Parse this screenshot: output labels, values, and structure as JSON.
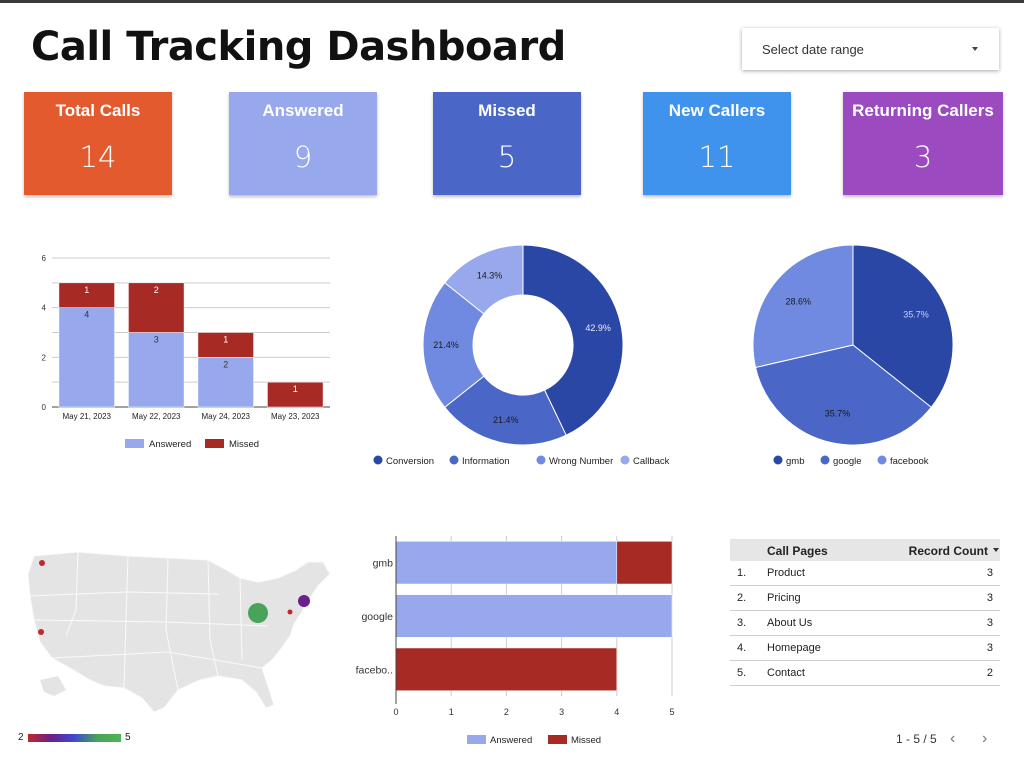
{
  "title": "Call Tracking Dashboard",
  "date_range": {
    "placeholder": "Select date range"
  },
  "kpis": [
    {
      "label": "Total Calls",
      "value": "14",
      "color": "#e45a2f"
    },
    {
      "label": "Answered",
      "value": "9",
      "color": "#97a9ec"
    },
    {
      "label": "Missed",
      "value": "5",
      "color": "#4a67c8"
    },
    {
      "label": "New Callers",
      "value": "11",
      "color": "#3f93ec"
    },
    {
      "label": "Returning Callers",
      "value": "3",
      "color": "#9b4bbf"
    }
  ],
  "colors": {
    "answered": "#97a9ec",
    "missed": "#a72a25",
    "dark_blue": "#2a47a6",
    "mid_blue": "#4a67c8",
    "light_blue": "#6f8ae0",
    "pale_blue": "#97a9ec"
  },
  "chart_data": [
    {
      "type": "bar",
      "stacked": true,
      "categories": [
        "May 21, 2023",
        "May 22, 2023",
        "May 24, 2023",
        "May 23, 2023"
      ],
      "series": [
        {
          "name": "Answered",
          "values": [
            4,
            3,
            2,
            0
          ]
        },
        {
          "name": "Missed",
          "values": [
            1,
            2,
            1,
            1
          ]
        }
      ],
      "ylim": [
        0,
        6
      ],
      "yticks": [
        "0",
        "2",
        "4",
        "6"
      ],
      "legend": "bottom"
    },
    {
      "type": "pie",
      "donut": true,
      "labels": [
        "Conversion",
        "Information",
        "Wrong Number",
        "Callback"
      ],
      "values": [
        42.9,
        21.4,
        21.4,
        14.3
      ],
      "value_labels": [
        "42.9%",
        "21.4%",
        "21.4%",
        "14.3%"
      ],
      "legend": "bottom"
    },
    {
      "type": "pie",
      "labels": [
        "gmb",
        "google",
        "facebook"
      ],
      "values": [
        35.7,
        35.7,
        28.6
      ],
      "value_labels": [
        "35.7%",
        "35.7%",
        "28.6%"
      ],
      "legend": "bottom"
    },
    {
      "type": "bar",
      "orientation": "horizontal",
      "stacked": true,
      "categories": [
        "gmb",
        "google",
        "facebo.."
      ],
      "series": [
        {
          "name": "Answered",
          "values": [
            4,
            5,
            0
          ]
        },
        {
          "name": "Missed",
          "values": [
            1,
            0,
            4
          ]
        }
      ],
      "xlim": [
        0,
        5
      ],
      "xticks": [
        "0",
        "1",
        "2",
        "3",
        "4",
        "5"
      ],
      "legend": "bottom"
    },
    {
      "type": "table",
      "columns": [
        "Call Pages",
        "Record Count"
      ],
      "rows": [
        [
          "Product",
          3
        ],
        [
          "Pricing",
          3
        ],
        [
          "About Us",
          3
        ],
        [
          "Homepage",
          3
        ],
        [
          "Contact",
          2
        ]
      ]
    }
  ],
  "map": {
    "legend_min": "2",
    "legend_max": "5"
  },
  "table": {
    "header_page": "Call Pages",
    "header_count": "Record Count",
    "rows": [
      {
        "num": "1.",
        "page": "Product",
        "count": "3"
      },
      {
        "num": "2.",
        "page": "Pricing",
        "count": "3"
      },
      {
        "num": "3.",
        "page": "About Us",
        "count": "3"
      },
      {
        "num": "4.",
        "page": "Homepage",
        "count": "3"
      },
      {
        "num": "5.",
        "page": "Contact",
        "count": "2"
      }
    ],
    "pager": "1 - 5 / 5",
    "prev_icon": "chevron-left-icon",
    "next_icon": "chevron-right-icon"
  }
}
